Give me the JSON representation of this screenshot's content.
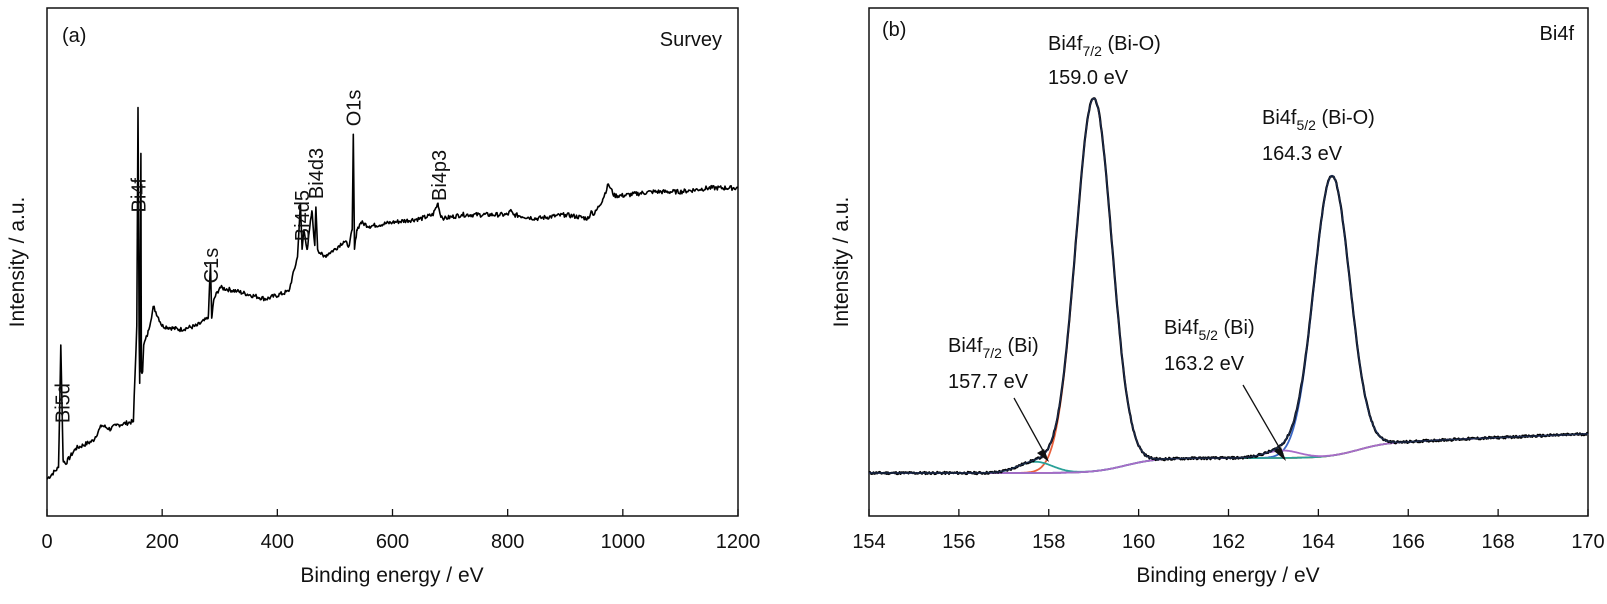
{
  "chart_data": [
    {
      "panel": "(a)",
      "type": "line",
      "title": "Survey",
      "xlabel": "Binding energy / eV",
      "ylabel": "Intensity / a.u.",
      "xlim": [
        0,
        1200
      ],
      "xticks": [
        "0",
        "200",
        "400",
        "600",
        "800",
        "1000",
        "1200"
      ],
      "y_ticks_shown": false,
      "series": [
        {
          "color": "#000000",
          "x": [
            0,
            20,
            24,
            28,
            32,
            50,
            80,
            95,
            110,
            120,
            150,
            156,
            158,
            160,
            161,
            163,
            164,
            166,
            168,
            175,
            185,
            200,
            230,
            260,
            280,
            284,
            286,
            290,
            300,
            330,
            380,
            420,
            435,
            440,
            443,
            446,
            452,
            460,
            465,
            467,
            470,
            480,
            490,
            500,
            515,
            525,
            530,
            532,
            534,
            538,
            545,
            560,
            600,
            650,
            670,
            679,
            683,
            690,
            720,
            800,
            805,
            810,
            850,
            900,
            940,
            945,
            950,
            965,
            975,
            985,
            1000,
            1050,
            1100,
            1150,
            1200
          ],
          "y": [
            0.0,
            0.03,
            0.35,
            0.05,
            0.04,
            0.08,
            0.1,
            0.14,
            0.13,
            0.14,
            0.15,
            0.4,
            0.97,
            0.38,
            0.25,
            0.85,
            0.28,
            0.28,
            0.35,
            0.38,
            0.45,
            0.4,
            0.39,
            0.4,
            0.42,
            0.56,
            0.42,
            0.47,
            0.5,
            0.49,
            0.47,
            0.49,
            0.58,
            0.72,
            0.6,
            0.65,
            0.6,
            0.7,
            0.61,
            0.71,
            0.6,
            0.58,
            0.59,
            0.6,
            0.62,
            0.61,
            0.65,
            0.9,
            0.6,
            0.65,
            0.67,
            0.66,
            0.67,
            0.68,
            0.69,
            0.72,
            0.69,
            0.68,
            0.69,
            0.69,
            0.7,
            0.69,
            0.68,
            0.69,
            0.68,
            0.7,
            0.69,
            0.73,
            0.77,
            0.74,
            0.74,
            0.75,
            0.75,
            0.76,
            0.76
          ]
        }
      ],
      "peak_labels": [
        {
          "text": "Bi5d",
          "x": 27
        },
        {
          "text": "Bi4f",
          "x": 159
        },
        {
          "text": "C1s",
          "x": 285
        },
        {
          "text": "Bi4d5",
          "x": 443
        },
        {
          "text": "Bi4d3",
          "x": 467
        },
        {
          "text": "O1s",
          "x": 532
        },
        {
          "text": "Bi4p3",
          "x": 681
        }
      ]
    },
    {
      "panel": "(b)",
      "type": "line",
      "title": "Bi4f",
      "xlabel": "Binding energy / eV",
      "ylabel": "Intensity / a.u.",
      "xlim": [
        154,
        170
      ],
      "xticks": [
        "154",
        "156",
        "158",
        "160",
        "162",
        "164",
        "166",
        "168",
        "170"
      ],
      "y_ticks_shown": false,
      "baseline": {
        "low": 0.0,
        "step1": 0.04,
        "step1_center": 159.7,
        "step2": 0.085,
        "step2_center": 164.9,
        "high_slope": 0.005
      },
      "components": [
        {
          "name_label": "Bi4f7/2 (Bi-O)",
          "center": 159.0,
          "height": 1.0,
          "fwhm": 0.95,
          "color": "#e8603c"
        },
        {
          "name_label": "Bi4f5/2 (Bi-O)",
          "center": 164.3,
          "height": 0.75,
          "fwhm": 0.95,
          "color": "#3a66c4"
        },
        {
          "name_label": "Bi4f7/2 (Bi)",
          "center": 157.7,
          "height": 0.03,
          "fwhm": 0.9,
          "color": "#2aa198"
        },
        {
          "name_label": "Bi4f5/2 (Bi)",
          "center": 163.2,
          "height": 0.02,
          "fwhm": 0.9,
          "color": "#a86cc8"
        }
      ],
      "envelope_color": "#1b2a4a",
      "raw_color": "#000000",
      "baseline_color": "#8a8a20",
      "annotations": [
        {
          "main": "Bi4f",
          "sub": "7/2",
          "rest": " (Bi-O)",
          "value": "159.0 eV"
        },
        {
          "main": "Bi4f",
          "sub": "5/2",
          "rest": " (Bi-O)",
          "value": "164.3 eV"
        },
        {
          "main": "Bi4f",
          "sub": "7/2",
          "rest": " (Bi)",
          "value": "157.7 eV"
        },
        {
          "main": "Bi4f",
          "sub": "5/2",
          "rest": " (Bi)",
          "value": "163.2 eV"
        }
      ]
    }
  ]
}
